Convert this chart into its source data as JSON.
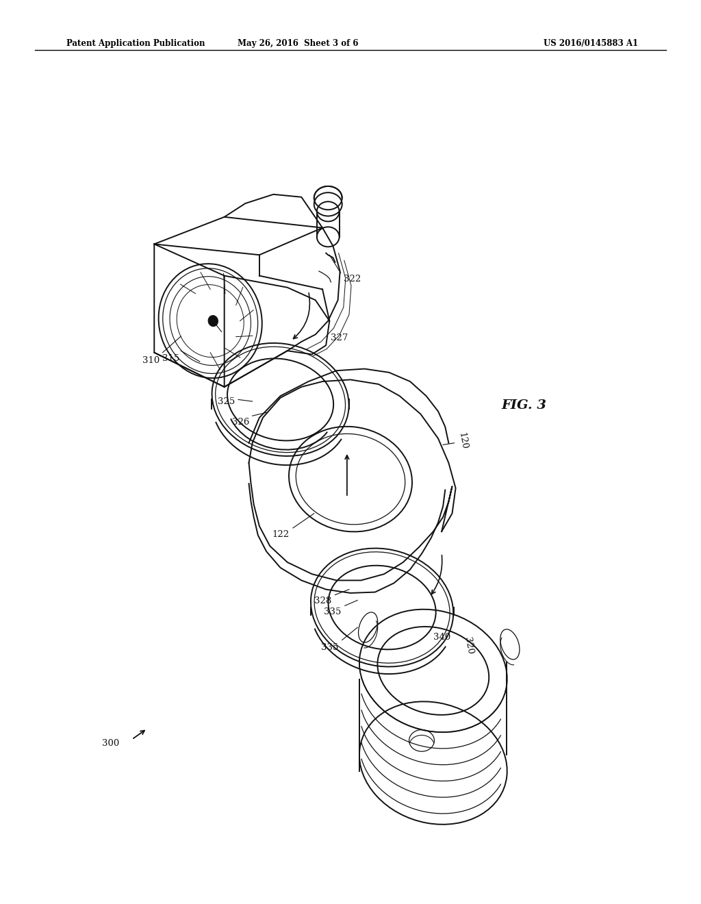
{
  "bg_color": "#ffffff",
  "header_left": "Patent Application Publication",
  "header_mid": "May 26, 2016  Sheet 3 of 6",
  "header_right": "US 2016/0145883 A1",
  "fig_label": "FIG. 3",
  "dark": "#111111",
  "lw": 1.4
}
